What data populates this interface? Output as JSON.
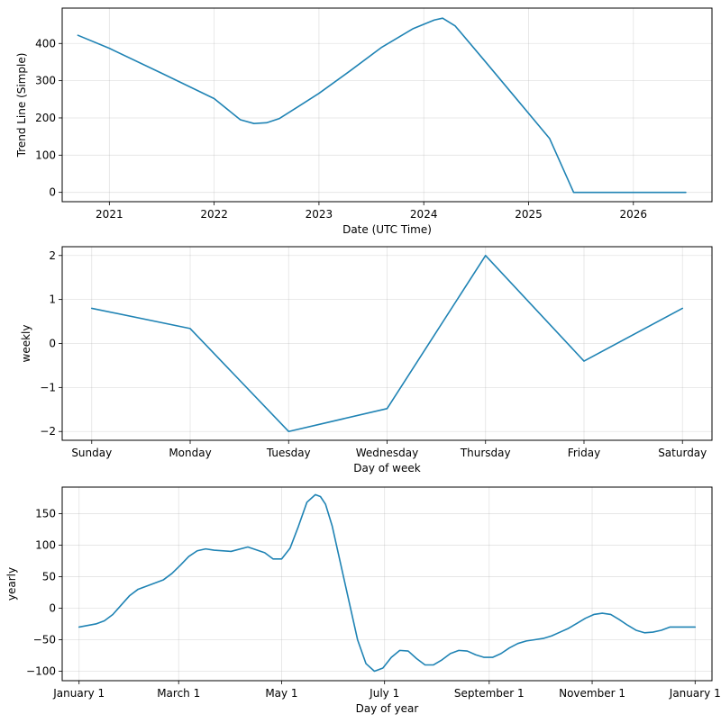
{
  "colors": {
    "series": "#1f83b4"
  },
  "chart_data": [
    {
      "type": "line",
      "xlabel": "Date (UTC Time)",
      "ylabel": "Trend Line (Simple)",
      "xlim": [
        2020.55,
        2026.75
      ],
      "ylim": [
        -25,
        495
      ],
      "x_ticks": [
        2021,
        2022,
        2023,
        2024,
        2025,
        2026
      ],
      "x_tick_labels": [
        "2021",
        "2022",
        "2023",
        "2024",
        "2025",
        "2026"
      ],
      "y_ticks": [
        0,
        100,
        200,
        300,
        400
      ],
      "y_tick_labels": [
        "0",
        "100",
        "200",
        "300",
        "400"
      ],
      "series": [
        {
          "name": "trend",
          "x": [
            2020.7,
            2021.0,
            2021.5,
            2022.0,
            2022.25,
            2022.38,
            2022.5,
            2022.62,
            2022.8,
            2023.0,
            2023.3,
            2023.6,
            2023.9,
            2024.1,
            2024.18,
            2024.3,
            2024.6,
            2024.9,
            2025.2,
            2025.43,
            2025.7,
            2026.0,
            2026.5
          ],
          "values": [
            422,
            387,
            320,
            252,
            195,
            185,
            187,
            198,
            230,
            266,
            327,
            390,
            440,
            463,
            468,
            447,
            347,
            246,
            145,
            0,
            0,
            0,
            0
          ]
        }
      ]
    },
    {
      "type": "line",
      "xlabel": "Day of week",
      "ylabel": "weekly",
      "categories": [
        "Sunday",
        "Monday",
        "Tuesday",
        "Wednesday",
        "Thursday",
        "Friday",
        "Saturday"
      ],
      "ylim": [
        -2.2,
        2.2
      ],
      "y_ticks": [
        -2,
        -1,
        0,
        1,
        2
      ],
      "y_tick_labels": [
        "−2",
        "−1",
        "0",
        "1",
        "2"
      ],
      "series": [
        {
          "name": "weekly",
          "values": [
            0.8,
            0.34,
            -2.0,
            -1.48,
            2.0,
            -0.4,
            0.8
          ]
        }
      ]
    },
    {
      "type": "line",
      "xlabel": "Day of year",
      "ylabel": "yearly",
      "xlim": [
        -10,
        375
      ],
      "ylim": [
        -115,
        192
      ],
      "x_ticks": [
        0,
        59,
        120,
        181,
        243,
        304,
        365
      ],
      "x_tick_labels": [
        "January 1",
        "March 1",
        "May 1",
        "July 1",
        "September 1",
        "November 1",
        "January 1"
      ],
      "y_ticks": [
        -100,
        -50,
        0,
        50,
        100,
        150
      ],
      "y_tick_labels": [
        "−100",
        "−50",
        "0",
        "50",
        "100",
        "150"
      ],
      "series": [
        {
          "name": "yearly",
          "x": [
            0,
            10,
            15,
            20,
            25,
            30,
            35,
            40,
            45,
            50,
            55,
            60,
            65,
            70,
            75,
            80,
            90,
            100,
            110,
            115,
            120,
            125,
            130,
            135,
            140,
            143,
            146,
            150,
            155,
            160,
            165,
            170,
            175,
            180,
            185,
            190,
            195,
            200,
            205,
            210,
            215,
            220,
            225,
            230,
            235,
            240,
            245,
            250,
            255,
            260,
            265,
            270,
            275,
            280,
            285,
            290,
            295,
            300,
            305,
            310,
            315,
            320,
            325,
            330,
            335,
            340,
            345,
            350,
            355,
            360,
            365
          ],
          "values": [
            -30,
            -25,
            -20,
            -10,
            5,
            20,
            30,
            35,
            40,
            45,
            55,
            68,
            82,
            91,
            94,
            92,
            90,
            97,
            88,
            78,
            78,
            95,
            130,
            168,
            180,
            177,
            165,
            130,
            70,
            10,
            -50,
            -88,
            -100,
            -95,
            -78,
            -67,
            -68,
            -80,
            -90,
            -90,
            -82,
            -72,
            -67,
            -68,
            -74,
            -78,
            -78,
            -72,
            -63,
            -56,
            -52,
            -50,
            -48,
            -44,
            -38,
            -32,
            -24,
            -16,
            -10,
            -8,
            -10,
            -18,
            -27,
            -35,
            -39,
            -38,
            -35,
            -30,
            -30,
            -30,
            -30
          ]
        }
      ]
    }
  ]
}
